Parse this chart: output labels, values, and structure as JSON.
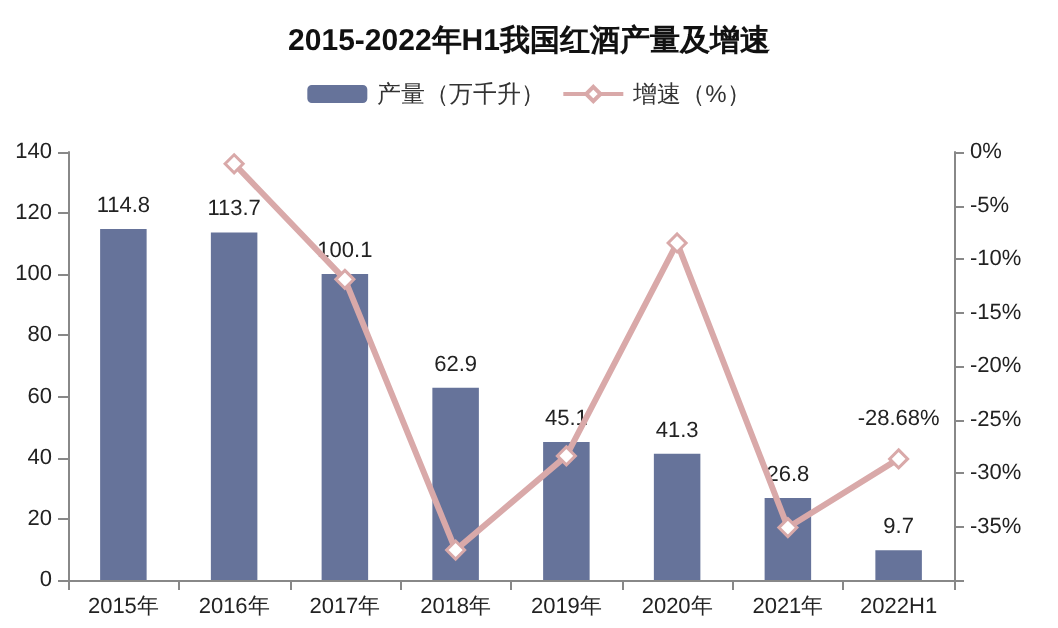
{
  "chart_data": {
    "type": "bar",
    "title": "2015-2022年H1我国红酒产量及增速",
    "categories": [
      "2015年",
      "2016年",
      "2017年",
      "2018年",
      "2019年",
      "2020年",
      "2021年",
      "2022H1"
    ],
    "series": [
      {
        "name": "产量（万千升）",
        "color": "#66739a",
        "values": [
          114.8,
          113.7,
          100.1,
          62.9,
          45.1,
          41.3,
          26.8,
          9.7
        ],
        "value_labels": [
          "114.8",
          "113.7",
          "100.1",
          "62.9",
          "45.1",
          "41.3",
          "26.8",
          "9.7"
        ]
      },
      {
        "name": "增速（%）",
        "type": "line",
        "axis": "y2",
        "color": "#d9a9a9",
        "marker": "diamond",
        "values": [
          null,
          -1.1,
          -11.9,
          -37.2,
          -28.4,
          -8.5,
          -35.1,
          -28.68
        ],
        "value_labels": [
          null,
          null,
          null,
          null,
          null,
          null,
          null,
          "-28.68%"
        ]
      }
    ],
    "ylim": [
      0,
      140
    ],
    "yticks": [
      0,
      20,
      40,
      60,
      80,
      100,
      120,
      140
    ],
    "y2lim": [
      -40,
      0
    ],
    "y2ticks": [
      {
        "value": -40,
        "label": null
      },
      {
        "value": -35,
        "label": "-35%"
      },
      {
        "value": -30,
        "label": "-30%"
      },
      {
        "value": -25,
        "label": "-25%"
      },
      {
        "value": -20,
        "label": "-20%"
      },
      {
        "value": -15,
        "label": "-15%"
      },
      {
        "value": -10,
        "label": "-10%"
      },
      {
        "value": -5,
        "label": "-5%"
      },
      {
        "value": 0,
        "label": "0%"
      }
    ],
    "grid": false,
    "legend": "top"
  }
}
